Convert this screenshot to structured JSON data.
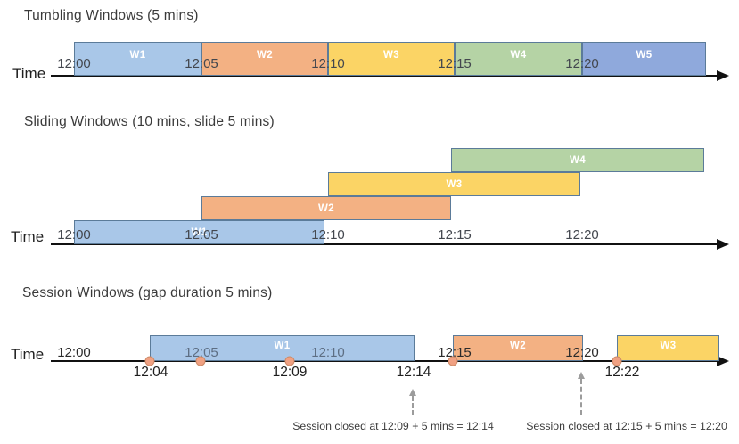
{
  "diagram": {
    "sections": [
      {
        "title": "Tumbling Windows (5 mins)",
        "time_axis_label": "Time",
        "windows": [
          {
            "label": "W1",
            "color": "blue"
          },
          {
            "label": "W2",
            "color": "orange"
          },
          {
            "label": "W3",
            "color": "yellow"
          },
          {
            "label": "W4",
            "color": "green"
          },
          {
            "label": "W5",
            "color": "indigo"
          }
        ],
        "axis_tick_labels": [
          "12:00",
          "12:05",
          "12:10",
          "12:15",
          "12:20"
        ]
      },
      {
        "title": "Sliding Windows (10 mins, slide 5 mins)",
        "time_axis_label": "Time",
        "windows": [
          {
            "label": "W1",
            "color": "blue"
          },
          {
            "label": "W2",
            "color": "orange"
          },
          {
            "label": "W3",
            "color": "yellow"
          },
          {
            "label": "W4",
            "color": "green"
          }
        ],
        "axis_tick_labels": [
          "12:00",
          "12:05",
          "12:10",
          "12:15",
          "12:20"
        ]
      },
      {
        "title": "Session Windows (gap duration 5 mins)",
        "time_axis_label": "Time",
        "windows": [
          {
            "label": "W1",
            "color": "blue"
          },
          {
            "label": "W2",
            "color": "orange"
          },
          {
            "label": "W3",
            "color": "yellow"
          }
        ],
        "on_axis_labels": [
          {
            "text": "12:00",
            "tone": "dark"
          },
          {
            "text": "12:05",
            "tone": "muted"
          },
          {
            "text": "12:10",
            "tone": "muted"
          },
          {
            "text": "12:15",
            "tone": "dark"
          },
          {
            "text": "12:20",
            "tone": "dark"
          }
        ],
        "below_axis_labels": [
          "12:04",
          "12:09",
          "12:14",
          "12:22"
        ],
        "event_dot_count": 5,
        "annotations": [
          "Session closed at 12:09 + 5 mins = 12:14",
          "Session closed at 12:15 + 5 mins = 12:20"
        ]
      }
    ],
    "colors": {
      "blue": "#a9c7e8",
      "orange": "#f3b183",
      "yellow": "#fbd465",
      "green": "#b5d3a5",
      "indigo": "#8fa9dc",
      "window_border": "#5b7b99",
      "axis": "#111111",
      "event_dot": "#f0a183",
      "event_dot_border": "#cd8a67",
      "dashed_arrow": "#9c9c9c"
    }
  }
}
